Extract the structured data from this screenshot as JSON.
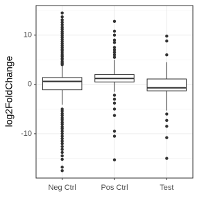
{
  "chart_data": {
    "type": "box",
    "y_label": "log2FoldChange",
    "categories": [
      "Neg Ctrl",
      "Pos Ctrl",
      "Test"
    ],
    "boxes": [
      {
        "min": -4.1,
        "q1": -1.1,
        "median": 0.6,
        "q3": 1.4,
        "max": 3.7,
        "outliers": [
          4.0,
          4.3,
          4.6,
          5.0,
          5.3,
          5.7,
          6.0,
          6.4,
          6.8,
          7.1,
          7.5,
          7.9,
          8.3,
          8.7,
          9.1,
          9.5,
          9.9,
          10.3,
          10.7,
          11.2,
          11.6,
          12.1,
          12.6,
          13.1,
          13.7,
          14.5,
          -5.0,
          -5.4,
          -5.9,
          -6.3,
          -6.8,
          -7.2,
          -7.7,
          -8.1,
          -8.6,
          -9.0,
          -9.5,
          -10.0,
          -10.5,
          -11.0,
          -11.5,
          -12.0,
          -12.6,
          -13.2,
          -13.8,
          -14.5,
          -15.2,
          -16.8,
          -17.5
        ]
      },
      {
        "min": -1.5,
        "q1": 0.5,
        "median": 1.2,
        "q3": 2.0,
        "max": 5.0,
        "outliers": [
          5.5,
          6.0,
          6.5,
          7.0,
          7.5,
          8.5,
          9.0,
          10.0,
          10.8,
          12.8,
          -2.2,
          -3.0,
          -3.8,
          -5.0,
          -6.3,
          -9.5,
          -10.5,
          -15.3
        ]
      },
      {
        "min": -5.3,
        "q1": -1.3,
        "median": -0.7,
        "q3": 1.1,
        "max": 4.5,
        "outliers": [
          6.0,
          8.8,
          9.8,
          -6.0,
          -7.3,
          -8.5,
          -10.8,
          -15.0
        ]
      }
    ],
    "box_color": "#333333",
    "ylim": [
      -19,
      16
    ],
    "yticks": [
      -10,
      0,
      10
    ],
    "minor_yticks": [
      -15,
      -5,
      5,
      15
    ],
    "grid": true
  }
}
